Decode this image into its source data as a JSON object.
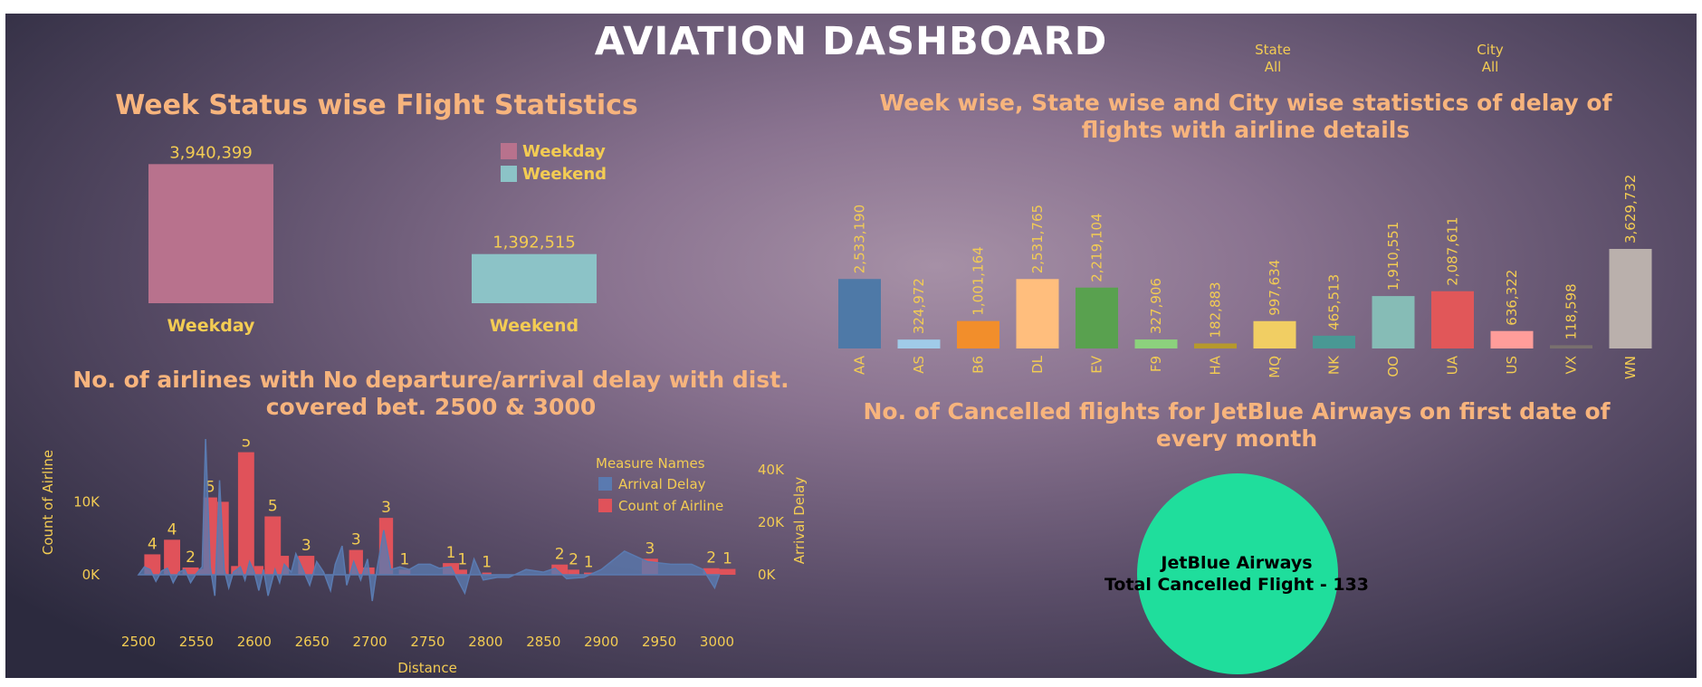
{
  "header": {
    "title": "AVIATION DASHBOARD"
  },
  "filters": [
    {
      "label": "State",
      "value": "All"
    },
    {
      "label": "City",
      "value": "All"
    }
  ],
  "colors": {
    "accent_title": "#f7b47d",
    "axis_text": "#f3cc53",
    "weekday": "#b8728d",
    "weekend": "#8cc3c7",
    "count_bar": "#e0525a",
    "delay_area": "#5a7ab0",
    "cancel_circle": "#1fde9c"
  },
  "week_stats": {
    "title": "Week Status wise Flight Statistics",
    "chart_data": {
      "type": "bar",
      "categories": [
        "Weekday",
        "Weekend"
      ],
      "values": [
        3940399,
        1392515
      ],
      "value_labels": [
        "3,940,399",
        "1,392,515"
      ],
      "legend": [
        "Weekday",
        "Weekend"
      ]
    }
  },
  "airline_delay": {
    "title_line1": "Week wise, State wise and City wise statistics of delay of",
    "title_line2": "flights with airline details",
    "chart_data": {
      "type": "bar",
      "categories": [
        "AA",
        "AS",
        "B6",
        "DL",
        "EV",
        "F9",
        "HA",
        "MQ",
        "NK",
        "OO",
        "UA",
        "US",
        "VX",
        "WN"
      ],
      "values": [
        2533190,
        324972,
        1001164,
        2531765,
        2219104,
        327906,
        182883,
        997634,
        465513,
        1910551,
        2087611,
        636322,
        118598,
        3629732
      ],
      "value_labels": [
        "2,533,190",
        "324,972",
        "1,001,164",
        "2,531,765",
        "2,219,104",
        "327,906",
        "182,883",
        "997,634",
        "465,513",
        "1,910,551",
        "2,087,611",
        "636,322",
        "118,598",
        "3,629,732"
      ],
      "colors": [
        "#4e79a7",
        "#a0cbe8",
        "#f28e2b",
        "#ffbe7d",
        "#59a14f",
        "#8cd17d",
        "#b6992d",
        "#f1ce63",
        "#499894",
        "#86bcb6",
        "#e15759",
        "#ff9d9a",
        "#79706e",
        "#bab0ac"
      ]
    }
  },
  "distance_chart": {
    "title_line1": "No. of airlines with No departure/arrival delay with dist.",
    "title_line2": "covered bet. 2500 & 3000",
    "chart_data": {
      "type": "bar",
      "xlabel": "Distance",
      "ylabel_left": "Count of Airline",
      "ylabel_right": "Arrival Delay",
      "x_ticks": [
        "2500",
        "2550",
        "2600",
        "2650",
        "2700",
        "2750",
        "2800",
        "2850",
        "2900",
        "2950",
        "3000"
      ],
      "xlim": [
        2500,
        3000
      ],
      "y_left_ticks": [
        "10K",
        "0K"
      ],
      "y_right_ticks": [
        "40K",
        "20K",
        "0K"
      ],
      "legend_title": "Measure Names",
      "legend": [
        "Arrival Delay",
        "Count of Airline"
      ],
      "count_bars": [
        {
          "x": 2505,
          "w": 14,
          "v": 2800,
          "label": "4"
        },
        {
          "x": 2522,
          "w": 14,
          "v": 4800,
          "label": "4"
        },
        {
          "x": 2538,
          "w": 14,
          "v": 1000,
          "label": "2"
        },
        {
          "x": 2550,
          "w": 10,
          "v": 800,
          "label": ""
        },
        {
          "x": 2556,
          "w": 12,
          "v": 10600,
          "label": "5"
        },
        {
          "x": 2568,
          "w": 10,
          "v": 10000,
          "label": ""
        },
        {
          "x": 2580,
          "w": 6,
          "v": 1200,
          "label": ""
        },
        {
          "x": 2586,
          "w": 14,
          "v": 16800,
          "label": "5"
        },
        {
          "x": 2600,
          "w": 8,
          "v": 1200,
          "label": ""
        },
        {
          "x": 2609,
          "w": 14,
          "v": 8000,
          "label": "5"
        },
        {
          "x": 2622,
          "w": 8,
          "v": 2600,
          "label": ""
        },
        {
          "x": 2638,
          "w": 14,
          "v": 2600,
          "label": "3"
        },
        {
          "x": 2682,
          "w": 12,
          "v": 3400,
          "label": "3"
        },
        {
          "x": 2694,
          "w": 10,
          "v": 1000,
          "label": ""
        },
        {
          "x": 2708,
          "w": 12,
          "v": 7800,
          "label": "3"
        },
        {
          "x": 2725,
          "w": 10,
          "v": 700,
          "label": "1"
        },
        {
          "x": 2763,
          "w": 14,
          "v": 1600,
          "label": "1"
        },
        {
          "x": 2776,
          "w": 8,
          "v": 700,
          "label": "1"
        },
        {
          "x": 2797,
          "w": 8,
          "v": 300,
          "label": "1"
        },
        {
          "x": 2857,
          "w": 14,
          "v": 1400,
          "label": "2"
        },
        {
          "x": 2871,
          "w": 10,
          "v": 700,
          "label": "2"
        },
        {
          "x": 2885,
          "w": 8,
          "v": 300,
          "label": "1"
        },
        {
          "x": 2935,
          "w": 14,
          "v": 2200,
          "label": "3"
        },
        {
          "x": 2988,
          "w": 14,
          "v": 900,
          "label": "2"
        },
        {
          "x": 3002,
          "w": 14,
          "v": 800,
          "label": "1"
        }
      ],
      "arrival_delay": [
        [
          2500,
          0
        ],
        [
          2505,
          3000
        ],
        [
          2510,
          2000
        ],
        [
          2515,
          -2500
        ],
        [
          2520,
          1500
        ],
        [
          2525,
          2500
        ],
        [
          2530,
          -3000
        ],
        [
          2535,
          1000
        ],
        [
          2540,
          2000
        ],
        [
          2545,
          -3000
        ],
        [
          2550,
          500
        ],
        [
          2555,
          3000
        ],
        [
          2558,
          52000
        ],
        [
          2562,
          3000
        ],
        [
          2566,
          -8000
        ],
        [
          2570,
          36000
        ],
        [
          2574,
          2000
        ],
        [
          2578,
          -5000
        ],
        [
          2582,
          1000
        ],
        [
          2588,
          3000
        ],
        [
          2592,
          -2000
        ],
        [
          2596,
          5000
        ],
        [
          2600,
          1000
        ],
        [
          2604,
          -6000
        ],
        [
          2608,
          2000
        ],
        [
          2612,
          -8000
        ],
        [
          2618,
          2000
        ],
        [
          2622,
          -3000
        ],
        [
          2626,
          4000
        ],
        [
          2632,
          1000
        ],
        [
          2636,
          8000
        ],
        [
          2642,
          2000
        ],
        [
          2648,
          -4000
        ],
        [
          2654,
          5000
        ],
        [
          2660,
          1000
        ],
        [
          2666,
          -6000
        ],
        [
          2670,
          4000
        ],
        [
          2676,
          11000
        ],
        [
          2680,
          -4000
        ],
        [
          2686,
          5000
        ],
        [
          2692,
          -2000
        ],
        [
          2698,
          6000
        ],
        [
          2702,
          -10000
        ],
        [
          2706,
          2000
        ],
        [
          2712,
          17000
        ],
        [
          2718,
          2000
        ],
        [
          2726,
          3000
        ],
        [
          2734,
          2000
        ],
        [
          2742,
          4000
        ],
        [
          2752,
          4000
        ],
        [
          2760,
          2500
        ],
        [
          2770,
          3000
        ],
        [
          2776,
          -2000
        ],
        [
          2782,
          -7000
        ],
        [
          2790,
          6000
        ],
        [
          2798,
          -2000
        ],
        [
          2810,
          -1000
        ],
        [
          2820,
          -1000
        ],
        [
          2835,
          2000
        ],
        [
          2850,
          1000
        ],
        [
          2860,
          2500
        ],
        [
          2870,
          -1500
        ],
        [
          2885,
          -1000
        ],
        [
          2900,
          2000
        ],
        [
          2920,
          9000
        ],
        [
          2940,
          5000
        ],
        [
          2960,
          4000
        ],
        [
          2978,
          4000
        ],
        [
          2988,
          2000
        ],
        [
          2998,
          -5000
        ],
        [
          3002,
          0
        ]
      ]
    }
  },
  "cancelled": {
    "title_line1": "No. of Cancelled flights for JetBlue Airways on first date of",
    "title_line2": "every month",
    "chart_data": {
      "type": "pie",
      "categories": [
        "JetBlue Airways"
      ],
      "values": [
        133
      ],
      "line1": "JetBlue Airways",
      "line2": "Total Cancelled Flight - 133"
    }
  }
}
